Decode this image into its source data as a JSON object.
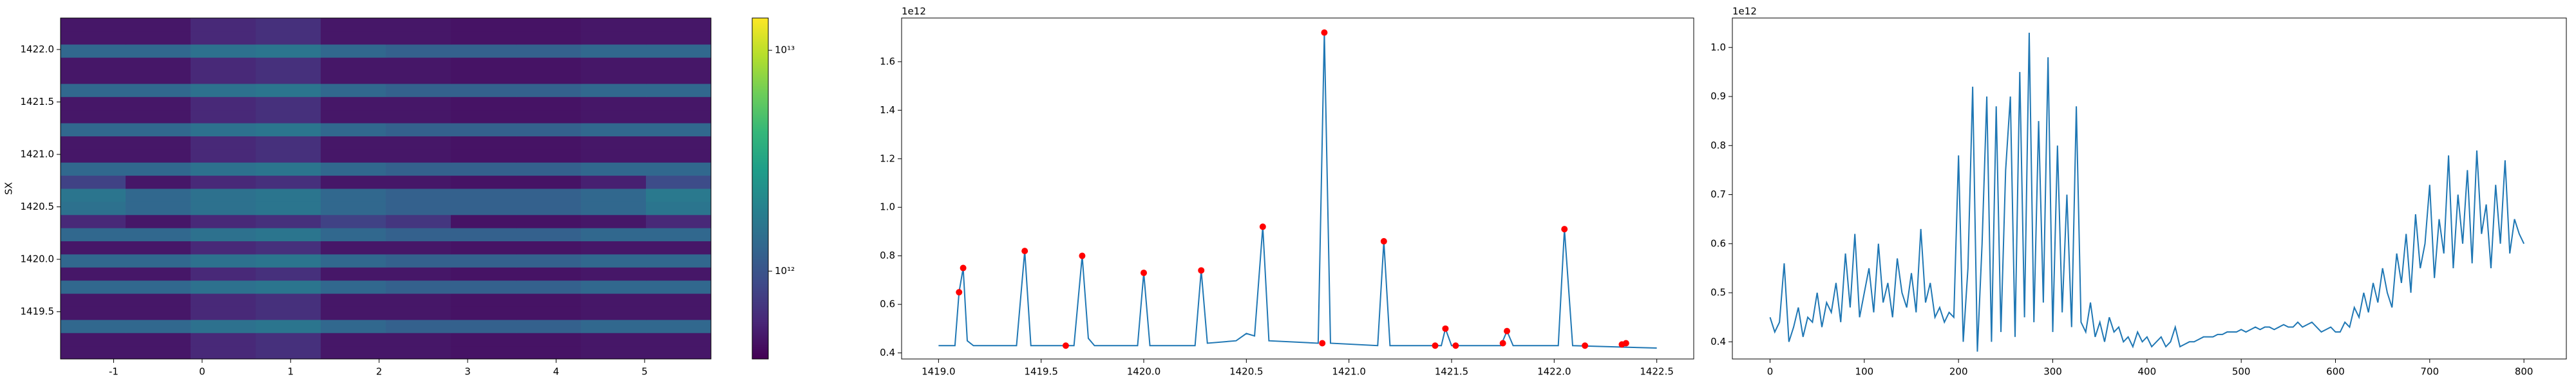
{
  "chart_data": [
    {
      "type": "heatmap",
      "ylabel": "SX",
      "log_color": true,
      "xlim": [
        -1.6,
        5.75
      ],
      "ylim": [
        1419.05,
        1422.3
      ],
      "xticks": [
        -1,
        0,
        1,
        2,
        3,
        4,
        5
      ],
      "yticks": [
        1419.5,
        {
          "value": 1420,
          "label": "1420.0"
        },
        1420.5,
        {
          "value": 1421,
          "label": "1421.0"
        },
        1421.5,
        {
          "value": 1422,
          "label": "1422.0"
        }
      ],
      "x_edges": [
        -1.6,
        -0.865,
        -0.13,
        0.605,
        1.34,
        2.075,
        2.81,
        3.545,
        4.28,
        5.015,
        5.75
      ],
      "y_edges": [
        1419.05,
        1419.175,
        1419.3,
        1419.425,
        1419.55,
        1419.675,
        1419.8,
        1419.925,
        1420.05,
        1420.175,
        1420.3,
        1420.425,
        1420.55,
        1420.675,
        1420.8,
        1420.925,
        1421.05,
        1421.175,
        1421.3,
        1421.425,
        1421.55,
        1421.675,
        1421.8,
        1421.925,
        1422.05,
        1422.175,
        1422.3
      ],
      "values": [
        [
          500000000000.0,
          500000000000.0,
          600000000000.0,
          650000000000.0,
          500000000000.0,
          500000000000.0,
          480000000000.0,
          480000000000.0,
          500000000000.0,
          500000000000.0
        ],
        [
          500000000000.0,
          500000000000.0,
          600000000000.0,
          650000000000.0,
          500000000000.0,
          500000000000.0,
          480000000000.0,
          480000000000.0,
          500000000000.0,
          500000000000.0
        ],
        [
          1300000000000.0,
          1300000000000.0,
          1500000000000.0,
          1600000000000.0,
          1300000000000.0,
          1200000000000.0,
          1200000000000.0,
          1200000000000.0,
          1300000000000.0,
          1300000000000.0
        ],
        [
          500000000000.0,
          500000000000.0,
          600000000000.0,
          650000000000.0,
          500000000000.0,
          500000000000.0,
          480000000000.0,
          480000000000.0,
          500000000000.0,
          500000000000.0
        ],
        [
          500000000000.0,
          500000000000.0,
          600000000000.0,
          650000000000.0,
          500000000000.0,
          500000000000.0,
          480000000000.0,
          480000000000.0,
          500000000000.0,
          500000000000.0
        ],
        [
          1300000000000.0,
          1300000000000.0,
          1500000000000.0,
          1600000000000.0,
          1300000000000.0,
          1200000000000.0,
          1200000000000.0,
          1200000000000.0,
          1300000000000.0,
          1300000000000.0
        ],
        [
          500000000000.0,
          500000000000.0,
          600000000000.0,
          650000000000.0,
          500000000000.0,
          500000000000.0,
          480000000000.0,
          480000000000.0,
          500000000000.0,
          500000000000.0
        ],
        [
          1300000000000.0,
          1300000000000.0,
          1500000000000.0,
          1600000000000.0,
          1300000000000.0,
          1200000000000.0,
          1200000000000.0,
          1200000000000.0,
          1300000000000.0,
          1300000000000.0
        ],
        [
          500000000000.0,
          500000000000.0,
          600000000000.0,
          650000000000.0,
          500000000000.0,
          500000000000.0,
          480000000000.0,
          480000000000.0,
          500000000000.0,
          500000000000.0
        ],
        [
          1300000000000.0,
          1300000000000.0,
          1500000000000.0,
          1600000000000.0,
          1300000000000.0,
          1200000000000.0,
          1200000000000.0,
          1200000000000.0,
          1300000000000.0,
          1300000000000.0
        ],
        [
          600000000000.0,
          500000000000.0,
          600000000000.0,
          650000000000.0,
          800000000000.0,
          700000000000.0,
          480000000000.0,
          480000000000.0,
          500000000000.0,
          600000000000.0
        ],
        [
          1500000000000.0,
          1300000000000.0,
          1500000000000.0,
          1600000000000.0,
          1300000000000.0,
          1200000000000.0,
          1200000000000.0,
          1200000000000.0,
          1300000000000.0,
          1600000000000.0
        ],
        [
          1600000000000.0,
          1300000000000.0,
          1500000000000.0,
          1600000000000.0,
          1300000000000.0,
          1200000000000.0,
          1200000000000.0,
          1200000000000.0,
          1300000000000.0,
          1700000000000.0
        ],
        [
          800000000000.0,
          500000000000.0,
          600000000000.0,
          650000000000.0,
          500000000000.0,
          500000000000.0,
          480000000000.0,
          480000000000.0,
          550000000000.0,
          900000000000.0
        ],
        [
          1300000000000.0,
          1300000000000.0,
          1500000000000.0,
          1600000000000.0,
          1300000000000.0,
          1200000000000.0,
          1200000000000.0,
          1200000000000.0,
          1300000000000.0,
          1300000000000.0
        ],
        [
          500000000000.0,
          500000000000.0,
          600000000000.0,
          650000000000.0,
          500000000000.0,
          500000000000.0,
          480000000000.0,
          480000000000.0,
          500000000000.0,
          500000000000.0
        ],
        [
          500000000000.0,
          500000000000.0,
          600000000000.0,
          650000000000.0,
          500000000000.0,
          500000000000.0,
          480000000000.0,
          480000000000.0,
          500000000000.0,
          500000000000.0
        ],
        [
          1300000000000.0,
          1300000000000.0,
          1500000000000.0,
          1600000000000.0,
          1300000000000.0,
          1200000000000.0,
          1200000000000.0,
          1200000000000.0,
          1300000000000.0,
          1300000000000.0
        ],
        [
          500000000000.0,
          500000000000.0,
          600000000000.0,
          650000000000.0,
          500000000000.0,
          500000000000.0,
          480000000000.0,
          480000000000.0,
          500000000000.0,
          500000000000.0
        ],
        [
          500000000000.0,
          500000000000.0,
          600000000000.0,
          650000000000.0,
          500000000000.0,
          500000000000.0,
          480000000000.0,
          480000000000.0,
          500000000000.0,
          500000000000.0
        ],
        [
          1300000000000.0,
          1300000000000.0,
          1500000000000.0,
          1600000000000.0,
          1300000000000.0,
          1200000000000.0,
          1200000000000.0,
          1200000000000.0,
          1300000000000.0,
          1300000000000.0
        ],
        [
          500000000000.0,
          500000000000.0,
          600000000000.0,
          650000000000.0,
          500000000000.0,
          500000000000.0,
          480000000000.0,
          480000000000.0,
          500000000000.0,
          500000000000.0
        ],
        [
          500000000000.0,
          500000000000.0,
          600000000000.0,
          650000000000.0,
          500000000000.0,
          500000000000.0,
          480000000000.0,
          480000000000.0,
          500000000000.0,
          500000000000.0
        ],
        [
          1300000000000.0,
          1300000000000.0,
          1500000000000.0,
          1600000000000.0,
          1300000000000.0,
          1200000000000.0,
          1200000000000.0,
          1200000000000.0,
          1300000000000.0,
          1300000000000.0
        ],
        [
          500000000000.0,
          500000000000.0,
          600000000000.0,
          650000000000.0,
          500000000000.0,
          500000000000.0,
          480000000000.0,
          480000000000.0,
          500000000000.0,
          500000000000.0
        ],
        [
          500000000000.0,
          500000000000.0,
          600000000000.0,
          650000000000.0,
          500000000000.0,
          500000000000.0,
          480000000000.0,
          480000000000.0,
          500000000000.0,
          500000000000.0
        ]
      ],
      "colorbar": {
        "lim": [
          400000000000.0,
          14000000000000.0
        ],
        "log": true,
        "ticks": [
          {
            "value": 1000000000000.0,
            "label": "10¹²"
          },
          {
            "value": 10000000000000.0,
            "label": "10¹³"
          }
        ]
      }
    },
    {
      "type": "line",
      "offset_text": "1e12",
      "xlim": [
        1418.82,
        1422.68
      ],
      "ylim": [
        0.375,
        1.78
      ],
      "xticks": [
        {
          "value": 1419,
          "label": "1419.0"
        },
        1419.5,
        {
          "value": 1420,
          "label": "1420.0"
        },
        1420.5,
        {
          "value": 1421,
          "label": "1421.0"
        },
        1421.5,
        {
          "value": 1422,
          "label": "1422.0"
        },
        1422.5
      ],
      "yticks": [
        0.4,
        0.6,
        0.8,
        {
          "value": 1,
          "label": "1.0"
        },
        1.2,
        1.4,
        1.6
      ],
      "series": [
        {
          "color": "#1f77b4",
          "x": [
            1419.0,
            1419.08,
            1419.1,
            1419.12,
            1419.14,
            1419.17,
            1419.38,
            1419.42,
            1419.45,
            1419.66,
            1419.7,
            1419.73,
            1419.76,
            1419.97,
            1420.0,
            1420.03,
            1420.25,
            1420.28,
            1420.31,
            1420.45,
            1420.5,
            1420.54,
            1420.58,
            1420.61,
            1420.85,
            1420.88,
            1420.91,
            1421.14,
            1421.17,
            1421.2,
            1421.45,
            1421.47,
            1421.5,
            1421.74,
            1421.77,
            1421.8,
            1422.02,
            1422.05,
            1422.09,
            1422.5
          ],
          "values": [
            0.43,
            0.43,
            0.65,
            0.75,
            0.45,
            0.43,
            0.43,
            0.82,
            0.43,
            0.43,
            0.8,
            0.46,
            0.43,
            0.43,
            0.73,
            0.43,
            0.43,
            0.74,
            0.44,
            0.45,
            0.48,
            0.47,
            0.92,
            0.45,
            0.44,
            1.72,
            0.44,
            0.43,
            0.86,
            0.43,
            0.43,
            0.5,
            0.43,
            0.43,
            0.49,
            0.43,
            0.43,
            0.91,
            0.43,
            0.42
          ]
        },
        {
          "color": "#ff0000",
          "marker": "circle",
          "line": false,
          "x": [
            1419.1,
            1419.12,
            1419.42,
            1419.62,
            1419.7,
            1420.0,
            1420.28,
            1420.58,
            1420.87,
            1420.88,
            1421.17,
            1421.42,
            1421.47,
            1421.52,
            1421.75,
            1421.77,
            1422.05,
            1422.15,
            1422.33,
            1422.35
          ],
          "values": [
            0.65,
            0.75,
            0.82,
            0.43,
            0.8,
            0.73,
            0.74,
            0.92,
            0.44,
            1.72,
            0.86,
            0.43,
            0.5,
            0.43,
            0.44,
            0.49,
            0.91,
            0.43,
            0.435,
            0.44
          ]
        }
      ]
    },
    {
      "type": "line",
      "offset_text": "1e12",
      "xlim": [
        -40,
        845
      ],
      "ylim": [
        0.365,
        1.06
      ],
      "xticks": [
        0,
        100,
        200,
        300,
        400,
        500,
        600,
        700,
        800
      ],
      "yticks": [
        0.4,
        0.5,
        0.6,
        0.7,
        0.8,
        0.9,
        {
          "value": 1,
          "label": "1.0"
        }
      ],
      "series": [
        {
          "color": "#1f77b4",
          "x": [
            0,
            5,
            10,
            15,
            20,
            25,
            30,
            35,
            40,
            45,
            50,
            55,
            60,
            65,
            70,
            75,
            80,
            85,
            90,
            95,
            100,
            105,
            110,
            115,
            120,
            125,
            130,
            135,
            140,
            145,
            150,
            155,
            160,
            165,
            170,
            175,
            180,
            185,
            190,
            195,
            200,
            205,
            210,
            215,
            220,
            225,
            230,
            235,
            240,
            245,
            250,
            255,
            260,
            265,
            270,
            275,
            280,
            285,
            290,
            295,
            300,
            305,
            310,
            315,
            320,
            325,
            330,
            335,
            340,
            345,
            350,
            355,
            360,
            365,
            370,
            375,
            380,
            385,
            390,
            395,
            400,
            405,
            410,
            415,
            420,
            425,
            430,
            435,
            440,
            445,
            450,
            455,
            460,
            465,
            470,
            475,
            480,
            485,
            490,
            495,
            500,
            505,
            510,
            515,
            520,
            525,
            530,
            535,
            540,
            545,
            550,
            555,
            560,
            565,
            570,
            575,
            580,
            585,
            590,
            595,
            600,
            605,
            610,
            615,
            620,
            625,
            630,
            635,
            640,
            645,
            650,
            655,
            660,
            665,
            670,
            675,
            680,
            685,
            690,
            695,
            700,
            705,
            710,
            715,
            720,
            725,
            730,
            735,
            740,
            745,
            750,
            755,
            760,
            765,
            770,
            775,
            780,
            785,
            790,
            795,
            800
          ],
          "values": [
            0.45,
            0.42,
            0.44,
            0.56,
            0.4,
            0.43,
            0.47,
            0.41,
            0.45,
            0.44,
            0.5,
            0.43,
            0.48,
            0.46,
            0.52,
            0.44,
            0.58,
            0.47,
            0.62,
            0.45,
            0.5,
            0.55,
            0.46,
            0.6,
            0.48,
            0.52,
            0.45,
            0.57,
            0.5,
            0.47,
            0.54,
            0.46,
            0.63,
            0.48,
            0.52,
            0.45,
            0.47,
            0.44,
            0.46,
            0.45,
            0.78,
            0.4,
            0.55,
            0.92,
            0.38,
            0.6,
            0.9,
            0.4,
            0.88,
            0.42,
            0.75,
            0.9,
            0.41,
            0.95,
            0.45,
            1.03,
            0.44,
            0.85,
            0.48,
            0.98,
            0.42,
            0.8,
            0.46,
            0.7,
            0.43,
            0.88,
            0.44,
            0.42,
            0.48,
            0.41,
            0.44,
            0.4,
            0.45,
            0.42,
            0.43,
            0.4,
            0.41,
            0.39,
            0.42,
            0.4,
            0.41,
            0.39,
            0.4,
            0.41,
            0.39,
            0.4,
            0.43,
            0.39,
            0.395,
            0.4,
            0.4,
            0.405,
            0.41,
            0.41,
            0.41,
            0.415,
            0.415,
            0.42,
            0.42,
            0.42,
            0.425,
            0.42,
            0.425,
            0.43,
            0.425,
            0.43,
            0.43,
            0.425,
            0.43,
            0.435,
            0.43,
            0.43,
            0.44,
            0.43,
            0.435,
            0.44,
            0.43,
            0.42,
            0.425,
            0.43,
            0.42,
            0.42,
            0.44,
            0.43,
            0.47,
            0.45,
            0.5,
            0.46,
            0.52,
            0.48,
            0.55,
            0.5,
            0.47,
            0.58,
            0.52,
            0.62,
            0.5,
            0.66,
            0.55,
            0.6,
            0.72,
            0.53,
            0.65,
            0.58,
            0.78,
            0.55,
            0.7,
            0.6,
            0.75,
            0.56,
            0.79,
            0.62,
            0.68,
            0.55,
            0.72,
            0.6,
            0.77,
            0.58,
            0.65,
            0.62,
            0.6
          ]
        }
      ]
    }
  ]
}
